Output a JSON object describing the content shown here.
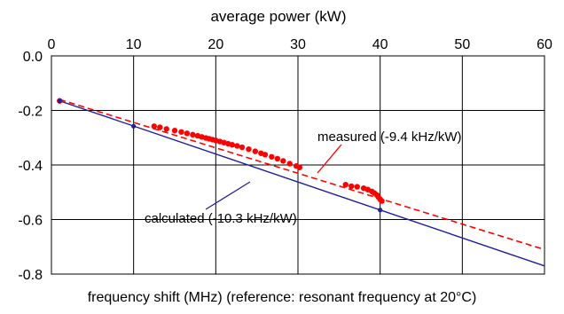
{
  "chart_data": {
    "type": "scatter",
    "title": "",
    "top_axis_label": "average power (kW)",
    "bottom_label": "frequency shift (MHz) (reference: resonant frequency at 20°C)",
    "xlim": [
      0,
      60
    ],
    "ylim": [
      -0.8,
      0.0
    ],
    "x_ticks": [
      0,
      10,
      20,
      30,
      40,
      50,
      60
    ],
    "x_tick_labels": [
      "0",
      "10",
      "20",
      "30",
      "40",
      "50",
      "60"
    ],
    "y_ticks": [
      0.0,
      -0.2,
      -0.4,
      -0.6,
      -0.8
    ],
    "y_tick_labels": [
      "0.0",
      "-0.2",
      "-0.4",
      "-0.6",
      "-0.8"
    ],
    "grid": true,
    "series": [
      {
        "name": "measured (-9.4 kHz/kW)",
        "kind": "scatter+dashed-fit",
        "color": "#ff0000",
        "points": [
          [
            1.0,
            -0.165
          ],
          [
            12.5,
            -0.258
          ],
          [
            13.2,
            -0.262
          ],
          [
            14.0,
            -0.268
          ],
          [
            15.0,
            -0.274
          ],
          [
            15.8,
            -0.279
          ],
          [
            16.5,
            -0.284
          ],
          [
            17.2,
            -0.289
          ],
          [
            17.8,
            -0.293
          ],
          [
            18.3,
            -0.297
          ],
          [
            18.8,
            -0.301
          ],
          [
            19.2,
            -0.304
          ],
          [
            19.6,
            -0.307
          ],
          [
            20.0,
            -0.31
          ],
          [
            20.5,
            -0.314
          ],
          [
            21.0,
            -0.318
          ],
          [
            21.5,
            -0.322
          ],
          [
            22.0,
            -0.326
          ],
          [
            22.6,
            -0.33
          ],
          [
            23.2,
            -0.335
          ],
          [
            24.0,
            -0.342
          ],
          [
            24.8,
            -0.35
          ],
          [
            25.5,
            -0.357
          ],
          [
            26.0,
            -0.362
          ],
          [
            26.8,
            -0.37
          ],
          [
            27.5,
            -0.377
          ],
          [
            28.2,
            -0.385
          ],
          [
            29.0,
            -0.395
          ],
          [
            29.8,
            -0.404
          ],
          [
            30.2,
            -0.409
          ],
          [
            35.8,
            -0.472
          ],
          [
            36.5,
            -0.478
          ],
          [
            37.2,
            -0.48
          ],
          [
            38.0,
            -0.485
          ],
          [
            38.5,
            -0.49
          ],
          [
            39.0,
            -0.497
          ],
          [
            39.3,
            -0.503
          ],
          [
            39.6,
            -0.51
          ],
          [
            39.8,
            -0.518
          ],
          [
            40.0,
            -0.526
          ],
          [
            40.2,
            -0.532
          ]
        ],
        "fit": [
          [
            1.0,
            -0.16
          ],
          [
            60.0,
            -0.71
          ]
        ]
      },
      {
        "name": "calculated (-10.3 kHz/kW)",
        "kind": "solid-line",
        "color": "#1f1f9f",
        "points": [
          [
            1.0,
            -0.165
          ],
          [
            10.0,
            -0.258
          ],
          [
            40.0,
            -0.565
          ]
        ],
        "fit": [
          [
            1.0,
            -0.165
          ],
          [
            60.0,
            -0.77
          ]
        ]
      }
    ],
    "annotations": [
      {
        "text": "measured (-9.4 kHz/kW)",
        "color": "#ff0000"
      },
      {
        "text": "calculated (-10.3 kHz/kW)",
        "color": "#1f1f9f"
      }
    ]
  }
}
